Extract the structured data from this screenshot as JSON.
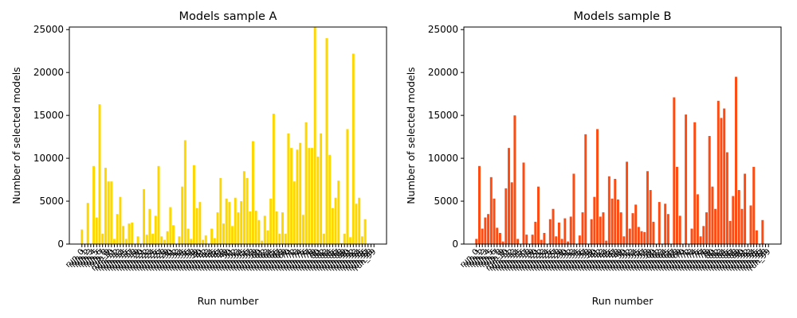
{
  "chart_data": [
    {
      "type": "bar",
      "title": "Models sample A",
      "xlabel": "Run number",
      "ylabel": "Number of selected models",
      "color": "#ffd700",
      "ylim": [
        0,
        25300
      ],
      "yticks": [
        0,
        5000,
        10000,
        15000,
        20000,
        25000
      ],
      "categories": [
        "run_0",
        "run_1",
        "run_2",
        "run_3",
        "run_4",
        "run_5",
        "run_6",
        "run_7",
        "run_8",
        "run_9",
        "run_10",
        "run_11",
        "run_12",
        "run_13",
        "run_14",
        "run_15",
        "run_16",
        "run_17",
        "run_18",
        "run_19",
        "run_20",
        "run_21",
        "run_22",
        "run_23",
        "run_24",
        "run_25",
        "run_26",
        "run_27",
        "run_28",
        "run_29",
        "run_30",
        "run_31",
        "run_32",
        "run_33",
        "run_34",
        "run_35",
        "run_36",
        "run_37",
        "run_38",
        "run_39",
        "run_40",
        "run_41",
        "run_42",
        "run_43",
        "run_44",
        "run_45",
        "run_46",
        "run_47",
        "run_48",
        "run_49",
        "run_50",
        "run_51",
        "run_52",
        "run_53",
        "run_54",
        "run_55",
        "run_56",
        "run_57",
        "run_58",
        "run_59",
        "run_60",
        "run_61",
        "run_62",
        "run_63",
        "run_64",
        "run_65",
        "run_66",
        "run_67",
        "run_68",
        "run_69",
        "run_70",
        "run_71",
        "run_72",
        "run_73",
        "run_74",
        "run_75",
        "run_76",
        "run_77",
        "run_78",
        "run_79",
        "run_80",
        "run_81",
        "run_82",
        "run_83",
        "run_84",
        "run_85",
        "run_86",
        "run_87",
        "run_88",
        "run_89",
        "run_90",
        "run_91",
        "run_92",
        "run_93",
        "run_94",
        "run_95",
        "run_96",
        "run_97",
        "run_98",
        "run_99"
      ],
      "values": [
        1700,
        0,
        4800,
        0,
        9100,
        3100,
        16300,
        1200,
        8900,
        7300,
        7300,
        600,
        3500,
        5500,
        2100,
        600,
        2400,
        2500,
        0,
        900,
        0,
        6400,
        1100,
        4100,
        1200,
        3300,
        9100,
        900,
        500,
        1500,
        4300,
        2200,
        0,
        900,
        6700,
        12100,
        1800,
        600,
        9200,
        4200,
        4900,
        500,
        1000,
        0,
        1800,
        700,
        3700,
        7700,
        2400,
        5300,
        4900,
        2100,
        5400,
        3700,
        5000,
        8500,
        7700,
        3800,
        12000,
        3900,
        2800,
        400,
        3300,
        1600,
        5300,
        15200,
        3800,
        1200,
        3700,
        1200,
        12900,
        11200,
        7300,
        11000,
        11800,
        3400,
        14200,
        11200,
        11200,
        25300,
        10200,
        12900,
        1200,
        24000,
        10400,
        4200,
        5400,
        7400,
        100,
        1200,
        13400,
        800,
        22200,
        4700,
        5400,
        900,
        2900,
        0,
        0,
        0
      ]
    },
    {
      "type": "bar",
      "title": "Models sample B",
      "xlabel": "Run number",
      "ylabel": "Number of selected models",
      "color": "#ff4a11",
      "ylim": [
        0,
        25300
      ],
      "yticks": [
        0,
        5000,
        10000,
        15000,
        20000,
        25000
      ],
      "categories": [
        "run_0",
        "run_1",
        "run_2",
        "run_3",
        "run_4",
        "run_5",
        "run_6",
        "run_7",
        "run_8",
        "run_9",
        "run_10",
        "run_11",
        "run_12",
        "run_13",
        "run_14",
        "run_15",
        "run_16",
        "run_17",
        "run_18",
        "run_19",
        "run_20",
        "run_21",
        "run_22",
        "run_23",
        "run_24",
        "run_25",
        "run_26",
        "run_27",
        "run_28",
        "run_29",
        "run_30",
        "run_31",
        "run_32",
        "run_33",
        "run_34",
        "run_35",
        "run_36",
        "run_37",
        "run_38",
        "run_39",
        "run_40",
        "run_41",
        "run_42",
        "run_43",
        "run_44",
        "run_45",
        "run_46",
        "run_47",
        "run_48",
        "run_49",
        "run_50",
        "run_51",
        "run_52",
        "run_53",
        "run_54",
        "run_55",
        "run_56",
        "run_57",
        "run_58",
        "run_59",
        "run_60",
        "run_61",
        "run_62",
        "run_63",
        "run_64",
        "run_65",
        "run_66",
        "run_67",
        "run_68",
        "run_69",
        "run_70",
        "run_71",
        "run_72",
        "run_73",
        "run_74",
        "run_75",
        "run_76",
        "run_77",
        "run_78",
        "run_79",
        "run_80",
        "run_81",
        "run_82",
        "run_83",
        "run_84",
        "run_85",
        "run_86",
        "run_87",
        "run_88",
        "run_89",
        "run_90",
        "run_91",
        "run_92",
        "run_93",
        "run_94",
        "run_95",
        "run_96",
        "run_97",
        "run_98",
        "run_99"
      ],
      "values": [
        600,
        9100,
        1800,
        3100,
        3500,
        7800,
        5300,
        1900,
        1300,
        300,
        6500,
        11200,
        7200,
        15000,
        600,
        0,
        9500,
        1100,
        0,
        1100,
        2600,
        6700,
        500,
        1300,
        0,
        2900,
        4100,
        900,
        2500,
        600,
        3000,
        300,
        3200,
        8200,
        0,
        1000,
        3700,
        12800,
        0,
        2900,
        5500,
        13400,
        3200,
        3700,
        400,
        7900,
        5300,
        7600,
        5200,
        3700,
        900,
        9600,
        1800,
        3600,
        4600,
        2000,
        1500,
        1400,
        8500,
        6300,
        2600,
        0,
        4900,
        0,
        4700,
        3500,
        0,
        17100,
        9000,
        3300,
        0,
        15100,
        0,
        1800,
        14200,
        5800,
        900,
        2100,
        3700,
        12600,
        6700,
        4100,
        16700,
        14700,
        15800,
        10700,
        2700,
        5600,
        19500,
        6300,
        4100,
        8200,
        0,
        4500,
        9000,
        1600,
        0,
        2800,
        0,
        0
      ]
    }
  ]
}
